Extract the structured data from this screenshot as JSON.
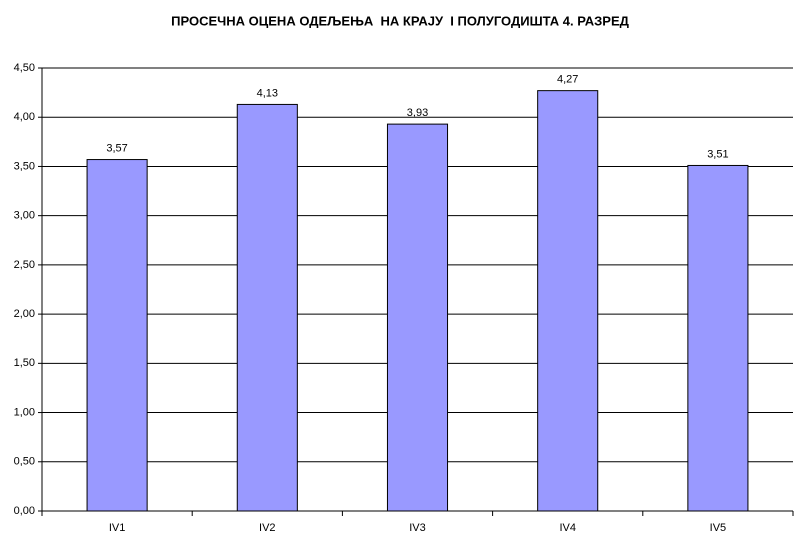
{
  "chart_data": {
    "type": "bar",
    "title": "ПРОСЕЧНА ОЦЕНА ОДЕЉЕЊА  НА КРАЈУ  I ПОЛУГОДИШТА 4. РАЗРЕД",
    "categories": [
      "IV1",
      "IV2",
      "IV3",
      "IV4",
      "IV5"
    ],
    "values": [
      3.57,
      4.13,
      3.93,
      4.27,
      3.51
    ],
    "value_labels": [
      "3,57",
      "4,13",
      "3,93",
      "4,27",
      "3,51"
    ],
    "color": "#9999ff",
    "ylim": [
      0,
      4.5
    ],
    "yticks": [
      {
        "value": 0,
        "label": "0,00"
      },
      {
        "value": 0.5,
        "label": "0,50"
      },
      {
        "value": 1,
        "label": "1,00"
      },
      {
        "value": 1.5,
        "label": "1,50"
      },
      {
        "value": 2,
        "label": "2,00"
      },
      {
        "value": 2.5,
        "label": "2,50"
      },
      {
        "value": 3,
        "label": "3,00"
      },
      {
        "value": 3.5,
        "label": "3,50"
      },
      {
        "value": 4,
        "label": "4,00"
      },
      {
        "value": 4.5,
        "label": "4,50"
      }
    ],
    "grid": true
  }
}
